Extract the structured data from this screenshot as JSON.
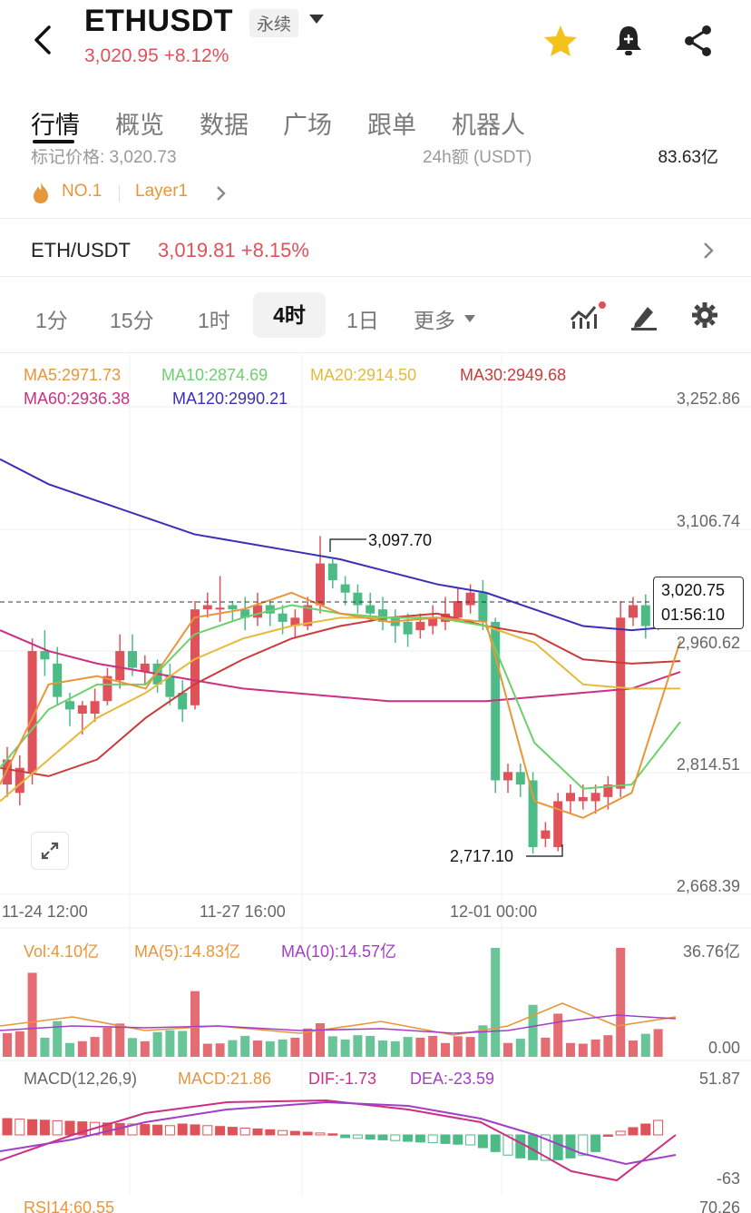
{
  "header": {
    "symbol": "ETHUSDT",
    "contract_type": "永续",
    "price_change": "3,020.95 +8.12%"
  },
  "tabs": [
    "行情",
    "概览",
    "数据",
    "广场",
    "跟单",
    "机器人"
  ],
  "info": {
    "mark_price_cut": "标记价格: 3,020.73",
    "volume_label_cut": "24h额 (USDT)",
    "volume_value_cut": "83.63亿",
    "rank": "NO.1",
    "sector": "Layer1"
  },
  "spot": {
    "pair": "ETH/USDT",
    "price_change": "3,019.81 +8.15%"
  },
  "timeframes": [
    "1分",
    "15分",
    "1时",
    "4时",
    "1日",
    "更多"
  ],
  "active_timeframe": "4时",
  "ma_legend": {
    "ma5": "MA5:2971.73",
    "ma10": "MA10:2874.69",
    "ma20": "MA20:2914.50",
    "ma30": "MA30:2949.68",
    "ma60": "MA60:2936.38",
    "ma120": "MA120:2990.21"
  },
  "price_axis": [
    "3,252.86",
    "3,106.74",
    "2,960.62",
    "2,814.51",
    "2,668.39"
  ],
  "current_price": "3,020.75",
  "countdown": "01:56:10",
  "high_label": "3,097.70",
  "low_label": "2,717.10",
  "time_axis": [
    "11-24 12:00",
    "11-27 16:00",
    "12-01 00:00"
  ],
  "volume": {
    "vol": "Vol:4.10亿",
    "ma5": "MA(5):14.83亿",
    "ma10": "MA(10):14.57亿",
    "max": "36.76亿",
    "min": "0.00"
  },
  "macd": {
    "params": "MACD(12,26,9)",
    "macd": "MACD:21.86",
    "dif": "DIF:-1.73",
    "dea": "DEA:-23.59",
    "max": "51.87",
    "min": "-63"
  },
  "rsi": {
    "label": "RSI14:60.55",
    "max": "70.26"
  },
  "colors": {
    "up": "#e0525a",
    "down": "#4dbb85",
    "ma5": "#e8963a",
    "ma10": "#6cd16c",
    "ma20": "#e6b93a",
    "ma30": "#cc3a3a",
    "ma60": "#cc2f84",
    "ma120": "#3a2fb8"
  }
}
